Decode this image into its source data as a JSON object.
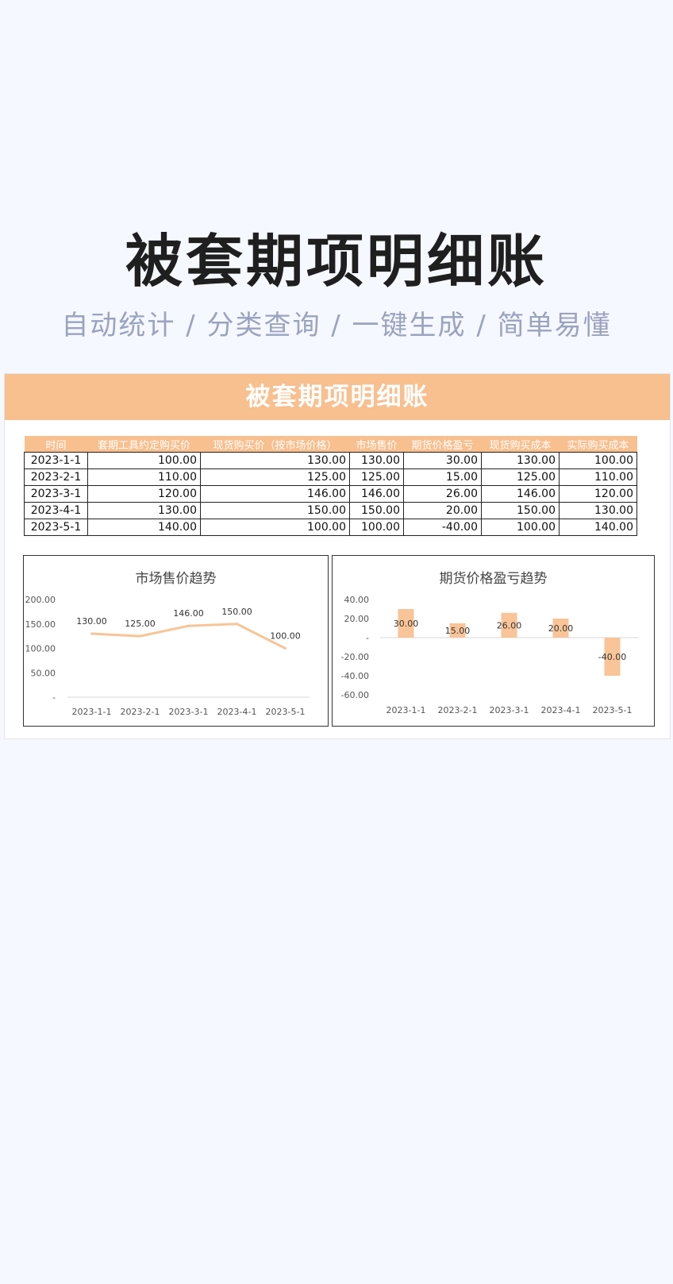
{
  "hero": {
    "title": "被套期项明细账",
    "subtitle": "自动统计 / 分类查询 / 一键生成 / 简单易懂"
  },
  "sheet": {
    "banner_title": "被套期项明细账",
    "columns": [
      "时间",
      "套期工具约定购买价",
      "现货购买价（按市场价格）",
      "市场售价",
      "期货价格盈亏",
      "现货购买成本",
      "实际购买成本"
    ],
    "rows": [
      [
        "2023-1-1",
        "100.00",
        "130.00",
        "130.00",
        "30.00",
        "130.00",
        "100.00"
      ],
      [
        "2023-2-1",
        "110.00",
        "125.00",
        "125.00",
        "15.00",
        "125.00",
        "110.00"
      ],
      [
        "2023-3-1",
        "120.00",
        "146.00",
        "146.00",
        "26.00",
        "146.00",
        "120.00"
      ],
      [
        "2023-4-1",
        "130.00",
        "150.00",
        "150.00",
        "20.00",
        "150.00",
        "130.00"
      ],
      [
        "2023-5-1",
        "140.00",
        "100.00",
        "100.00",
        "-40.00",
        "100.00",
        "140.00"
      ]
    ]
  },
  "colors": {
    "accent": "#f8bf8f",
    "bar": "#f9c497",
    "line": "#f9c497"
  },
  "chart_data": [
    {
      "type": "line",
      "title": "市场售价趋势",
      "categories": [
        "2023-1-1",
        "2023-2-1",
        "2023-3-1",
        "2023-4-1",
        "2023-5-1"
      ],
      "values": [
        130,
        125,
        146,
        150,
        100
      ],
      "value_labels": [
        "130.00",
        "125.00",
        "146.00",
        "150.00",
        "100.00"
      ],
      "ylim": [
        0,
        200
      ],
      "yticks": [
        200,
        150,
        100,
        50,
        0
      ],
      "ytick_labels": [
        "200.00",
        "150.00",
        "100.00",
        "50.00",
        "-"
      ],
      "grid": false
    },
    {
      "type": "bar",
      "title": "期货价格盈亏趋势",
      "categories": [
        "2023-1-1",
        "2023-2-1",
        "2023-3-1",
        "2023-4-1",
        "2023-5-1"
      ],
      "values": [
        30,
        15,
        26,
        20,
        -40
      ],
      "value_labels": [
        "30.00",
        "15.00",
        "26.00",
        "20.00",
        "-40.00"
      ],
      "ylim": [
        -60,
        40
      ],
      "yticks": [
        40,
        20,
        0,
        -20,
        -40,
        -60
      ],
      "ytick_labels": [
        "40.00",
        "20.00",
        "-",
        "-20.00",
        "-40.00",
        "-60.00"
      ],
      "grid": false
    }
  ]
}
